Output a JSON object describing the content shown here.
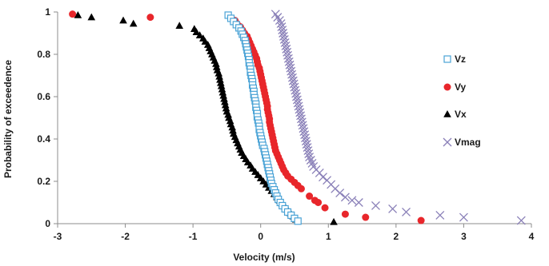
{
  "chart_data": {
    "type": "scatter",
    "xlabel": "Velocity (m/s)",
    "ylabel": "Probability of exceedence",
    "xlim": [
      -3,
      4
    ],
    "ylim": [
      0,
      1
    ],
    "xticks": [
      "-3",
      "-2",
      "-1",
      "0",
      "1",
      "2",
      "3",
      "4"
    ],
    "yticks": [
      "0",
      "0.2",
      "0.4",
      "0.6",
      "0.8",
      "1"
    ],
    "grid": false,
    "legend_position": "right",
    "series": [
      {
        "name": "Vz",
        "marker": "open-square",
        "color": "#4aa3d6",
        "points": [
          [
            -0.48,
            0.985
          ],
          [
            -0.44,
            0.97
          ],
          [
            -0.4,
            0.955
          ],
          [
            -0.36,
            0.94
          ],
          [
            -0.32,
            0.925
          ],
          [
            -0.29,
            0.91
          ],
          [
            -0.27,
            0.895
          ],
          [
            -0.25,
            0.88
          ],
          [
            -0.23,
            0.865
          ],
          [
            -0.22,
            0.85
          ],
          [
            -0.21,
            0.835
          ],
          [
            -0.2,
            0.82
          ],
          [
            -0.19,
            0.805
          ],
          [
            -0.18,
            0.79
          ],
          [
            -0.17,
            0.775
          ],
          [
            -0.17,
            0.76
          ],
          [
            -0.16,
            0.745
          ],
          [
            -0.15,
            0.73
          ],
          [
            -0.15,
            0.715
          ],
          [
            -0.14,
            0.7
          ],
          [
            -0.13,
            0.685
          ],
          [
            -0.12,
            0.67
          ],
          [
            -0.12,
            0.655
          ],
          [
            -0.11,
            0.64
          ],
          [
            -0.1,
            0.625
          ],
          [
            -0.1,
            0.61
          ],
          [
            -0.09,
            0.595
          ],
          [
            -0.08,
            0.58
          ],
          [
            -0.07,
            0.565
          ],
          [
            -0.07,
            0.55
          ],
          [
            -0.06,
            0.535
          ],
          [
            -0.05,
            0.52
          ],
          [
            -0.05,
            0.505
          ],
          [
            -0.04,
            0.49
          ],
          [
            -0.03,
            0.475
          ],
          [
            -0.02,
            0.46
          ],
          [
            -0.02,
            0.445
          ],
          [
            -0.01,
            0.43
          ],
          [
            0.0,
            0.415
          ],
          [
            0.01,
            0.4
          ],
          [
            0.02,
            0.385
          ],
          [
            0.03,
            0.37
          ],
          [
            0.05,
            0.355
          ],
          [
            0.06,
            0.34
          ],
          [
            0.07,
            0.325
          ],
          [
            0.08,
            0.31
          ],
          [
            0.09,
            0.295
          ],
          [
            0.1,
            0.28
          ],
          [
            0.11,
            0.265
          ],
          [
            0.12,
            0.25
          ],
          [
            0.13,
            0.235
          ],
          [
            0.14,
            0.22
          ],
          [
            0.15,
            0.205
          ],
          [
            0.16,
            0.19
          ],
          [
            0.18,
            0.175
          ],
          [
            0.2,
            0.16
          ],
          [
            0.22,
            0.145
          ],
          [
            0.24,
            0.13
          ],
          [
            0.26,
            0.115
          ],
          [
            0.29,
            0.1
          ],
          [
            0.32,
            0.085
          ],
          [
            0.36,
            0.07
          ],
          [
            0.4,
            0.055
          ],
          [
            0.45,
            0.04
          ],
          [
            0.5,
            0.025
          ],
          [
            0.55,
            0.012
          ]
        ]
      },
      {
        "name": "Vy",
        "marker": "filled-circle",
        "color": "#e8262b",
        "points": [
          [
            -2.78,
            0.99
          ],
          [
            -1.63,
            0.975
          ],
          [
            -0.38,
            0.96
          ],
          [
            -0.35,
            0.945
          ],
          [
            -0.3,
            0.93
          ],
          [
            -0.27,
            0.915
          ],
          [
            -0.24,
            0.9
          ],
          [
            -0.2,
            0.885
          ],
          [
            -0.18,
            0.87
          ],
          [
            -0.16,
            0.855
          ],
          [
            -0.14,
            0.84
          ],
          [
            -0.12,
            0.825
          ],
          [
            -0.1,
            0.81
          ],
          [
            -0.08,
            0.795
          ],
          [
            -0.06,
            0.78
          ],
          [
            -0.05,
            0.765
          ],
          [
            -0.04,
            0.75
          ],
          [
            -0.02,
            0.735
          ],
          [
            -0.01,
            0.72
          ],
          [
            0.0,
            0.705
          ],
          [
            0.01,
            0.69
          ],
          [
            0.02,
            0.675
          ],
          [
            0.03,
            0.66
          ],
          [
            0.04,
            0.645
          ],
          [
            0.05,
            0.63
          ],
          [
            0.06,
            0.615
          ],
          [
            0.07,
            0.6
          ],
          [
            0.08,
            0.585
          ],
          [
            0.09,
            0.57
          ],
          [
            0.1,
            0.555
          ],
          [
            0.1,
            0.54
          ],
          [
            0.11,
            0.525
          ],
          [
            0.12,
            0.51
          ],
          [
            0.13,
            0.495
          ],
          [
            0.13,
            0.48
          ],
          [
            0.14,
            0.465
          ],
          [
            0.15,
            0.45
          ],
          [
            0.16,
            0.435
          ],
          [
            0.17,
            0.42
          ],
          [
            0.18,
            0.405
          ],
          [
            0.19,
            0.39
          ],
          [
            0.2,
            0.375
          ],
          [
            0.21,
            0.36
          ],
          [
            0.22,
            0.345
          ],
          [
            0.24,
            0.33
          ],
          [
            0.26,
            0.315
          ],
          [
            0.28,
            0.3
          ],
          [
            0.3,
            0.285
          ],
          [
            0.32,
            0.27
          ],
          [
            0.34,
            0.255
          ],
          [
            0.37,
            0.24
          ],
          [
            0.4,
            0.225
          ],
          [
            0.45,
            0.21
          ],
          [
            0.5,
            0.195
          ],
          [
            0.55,
            0.18
          ],
          [
            0.6,
            0.165
          ],
          [
            0.72,
            0.13
          ],
          [
            0.8,
            0.11
          ],
          [
            0.85,
            0.1
          ],
          [
            0.95,
            0.075
          ],
          [
            1.25,
            0.045
          ],
          [
            1.55,
            0.03
          ],
          [
            2.37,
            0.015
          ]
        ]
      },
      {
        "name": "Vx",
        "marker": "filled-triangle",
        "color": "#000000",
        "points": [
          [
            -2.7,
            0.985
          ],
          [
            -2.5,
            0.975
          ],
          [
            -2.03,
            0.96
          ],
          [
            -1.88,
            0.945
          ],
          [
            -1.2,
            0.935
          ],
          [
            -0.98,
            0.92
          ],
          [
            -0.95,
            0.905
          ],
          [
            -0.9,
            0.89
          ],
          [
            -0.85,
            0.875
          ],
          [
            -0.82,
            0.86
          ],
          [
            -0.78,
            0.845
          ],
          [
            -0.76,
            0.83
          ],
          [
            -0.74,
            0.815
          ],
          [
            -0.72,
            0.8
          ],
          [
            -0.7,
            0.785
          ],
          [
            -0.68,
            0.77
          ],
          [
            -0.66,
            0.755
          ],
          [
            -0.65,
            0.74
          ],
          [
            -0.64,
            0.725
          ],
          [
            -0.62,
            0.71
          ],
          [
            -0.61,
            0.695
          ],
          [
            -0.6,
            0.68
          ],
          [
            -0.59,
            0.665
          ],
          [
            -0.58,
            0.65
          ],
          [
            -0.57,
            0.635
          ],
          [
            -0.56,
            0.62
          ],
          [
            -0.55,
            0.605
          ],
          [
            -0.54,
            0.59
          ],
          [
            -0.53,
            0.575
          ],
          [
            -0.52,
            0.56
          ],
          [
            -0.51,
            0.545
          ],
          [
            -0.5,
            0.53
          ],
          [
            -0.48,
            0.515
          ],
          [
            -0.47,
            0.5
          ],
          [
            -0.45,
            0.485
          ],
          [
            -0.44,
            0.47
          ],
          [
            -0.42,
            0.455
          ],
          [
            -0.41,
            0.44
          ],
          [
            -0.4,
            0.425
          ],
          [
            -0.38,
            0.41
          ],
          [
            -0.36,
            0.395
          ],
          [
            -0.34,
            0.38
          ],
          [
            -0.32,
            0.365
          ],
          [
            -0.3,
            0.35
          ],
          [
            -0.28,
            0.335
          ],
          [
            -0.25,
            0.32
          ],
          [
            -0.22,
            0.305
          ],
          [
            -0.19,
            0.29
          ],
          [
            -0.15,
            0.275
          ],
          [
            -0.12,
            0.26
          ],
          [
            -0.08,
            0.245
          ],
          [
            -0.04,
            0.23
          ],
          [
            0.0,
            0.215
          ],
          [
            0.04,
            0.2
          ],
          [
            0.08,
            0.185
          ],
          [
            0.12,
            0.17
          ],
          [
            0.16,
            0.155
          ],
          [
            0.2,
            0.14
          ],
          [
            0.24,
            0.125
          ],
          [
            0.28,
            0.11
          ],
          [
            0.32,
            0.095
          ],
          [
            0.36,
            0.08
          ],
          [
            0.4,
            0.065
          ],
          [
            0.44,
            0.05
          ],
          [
            0.48,
            0.035
          ],
          [
            0.52,
            0.02
          ],
          [
            1.08,
            0.008
          ]
        ]
      },
      {
        "name": "Vmag",
        "marker": "x",
        "color": "#8a80b8",
        "points": [
          [
            0.22,
            0.99
          ],
          [
            0.25,
            0.975
          ],
          [
            0.28,
            0.96
          ],
          [
            0.3,
            0.945
          ],
          [
            0.31,
            0.93
          ],
          [
            0.32,
            0.915
          ],
          [
            0.33,
            0.9
          ],
          [
            0.34,
            0.885
          ],
          [
            0.35,
            0.87
          ],
          [
            0.36,
            0.855
          ],
          [
            0.37,
            0.84
          ],
          [
            0.38,
            0.825
          ],
          [
            0.39,
            0.81
          ],
          [
            0.4,
            0.795
          ],
          [
            0.41,
            0.78
          ],
          [
            0.42,
            0.765
          ],
          [
            0.43,
            0.75
          ],
          [
            0.44,
            0.735
          ],
          [
            0.45,
            0.72
          ],
          [
            0.46,
            0.705
          ],
          [
            0.47,
            0.69
          ],
          [
            0.48,
            0.675
          ],
          [
            0.49,
            0.66
          ],
          [
            0.5,
            0.645
          ],
          [
            0.51,
            0.63
          ],
          [
            0.52,
            0.615
          ],
          [
            0.53,
            0.6
          ],
          [
            0.54,
            0.585
          ],
          [
            0.55,
            0.57
          ],
          [
            0.56,
            0.555
          ],
          [
            0.57,
            0.54
          ],
          [
            0.58,
            0.525
          ],
          [
            0.59,
            0.51
          ],
          [
            0.6,
            0.495
          ],
          [
            0.61,
            0.48
          ],
          [
            0.62,
            0.465
          ],
          [
            0.63,
            0.45
          ],
          [
            0.64,
            0.435
          ],
          [
            0.65,
            0.42
          ],
          [
            0.66,
            0.405
          ],
          [
            0.67,
            0.39
          ],
          [
            0.68,
            0.375
          ],
          [
            0.69,
            0.36
          ],
          [
            0.7,
            0.345
          ],
          [
            0.71,
            0.33
          ],
          [
            0.72,
            0.315
          ],
          [
            0.74,
            0.3
          ],
          [
            0.76,
            0.285
          ],
          [
            0.78,
            0.27
          ],
          [
            0.82,
            0.255
          ],
          [
            0.87,
            0.24
          ],
          [
            0.92,
            0.22
          ],
          [
            0.98,
            0.205
          ],
          [
            1.04,
            0.185
          ],
          [
            1.1,
            0.165
          ],
          [
            1.17,
            0.145
          ],
          [
            1.25,
            0.125
          ],
          [
            1.35,
            0.11
          ],
          [
            1.45,
            0.1
          ],
          [
            1.7,
            0.085
          ],
          [
            1.95,
            0.07
          ],
          [
            2.15,
            0.055
          ],
          [
            2.65,
            0.04
          ],
          [
            3.0,
            0.03
          ],
          [
            3.85,
            0.015
          ]
        ]
      }
    ]
  }
}
